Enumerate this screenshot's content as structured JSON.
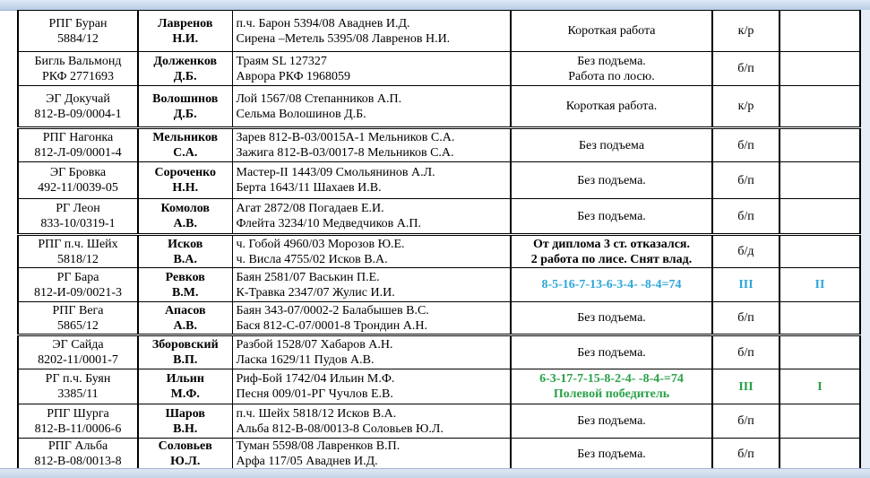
{
  "rows": [
    {
      "dog": [
        "РПГ Буран",
        "5884/12"
      ],
      "owner": [
        "Лавренов",
        "Н.И."
      ],
      "parents": [
        "п.ч. Барон 5394/08 Аваднев И.Д.",
        "Сирена –Метель 5395/08 Лавренов Н.И."
      ],
      "result": [
        "Короткая работа"
      ],
      "diploma": "к/р",
      "place": "",
      "style": "normal"
    },
    {
      "dog": [
        "Бигль Вальмонд",
        "РКФ 2771693"
      ],
      "owner": [
        "Долженков",
        "Д.Б."
      ],
      "parents": [
        "Траям SL 127327",
        "Аврора  РКФ 1968059"
      ],
      "result": [
        "Без подъема.",
        "Работа по лосю."
      ],
      "diploma": "б/п",
      "place": "",
      "style": "normal"
    },
    {
      "dog": [
        "ЭГ Докучай",
        "812-В-09/0004-1"
      ],
      "owner": [
        "Волошинов",
        "Д.Б."
      ],
      "parents": [
        "Лой 1567/08 Степанников А.П.",
        "Сельма  Волошинов Д.Б."
      ],
      "result": [
        "Короткая работа."
      ],
      "diploma": "к/р",
      "place": "",
      "style": "normal"
    },
    {
      "dog": [
        "РПГ Нагонка",
        "812-Л-09/0001-4"
      ],
      "owner": [
        "Мельников",
        "С.А."
      ],
      "parents": [
        "Зарев 812-В-03/0015А-1 Мельников С.А.",
        "Зажига 812-В-03/0017-8 Мельников С.А."
      ],
      "result": [
        "Без подъема"
      ],
      "diploma": "б/п",
      "place": "",
      "style": "normal",
      "sep": true
    },
    {
      "dog": [
        "ЭГ Бровка",
        "492-11/0039-05"
      ],
      "owner": [
        "Сороченко",
        "Н.Н."
      ],
      "parents": [
        "Мастер-II 1443/09 Смольянинов А.Л.",
        "Берта 1643/11 Шахаев И.В."
      ],
      "result": [
        "Без подъема."
      ],
      "diploma": "б/п",
      "place": "",
      "style": "normal"
    },
    {
      "dog": [
        "РГ Леон",
        "833-10/0319-1"
      ],
      "owner": [
        "Комолов",
        "А.В."
      ],
      "parents": [
        "Агат 2872/08 Погадаев Е.И.",
        "Флейта 3234/10 Медведчиков А.П."
      ],
      "result": [
        "Без подъема."
      ],
      "diploma": "б/п",
      "place": "",
      "style": "normal"
    },
    {
      "dog": [
        "РПГ п.ч. Шейх",
        "5818/12"
      ],
      "owner": [
        "Исков",
        "В.А."
      ],
      "parents": [
        "ч. Гобой  4960/03 Морозов Ю.Е.",
        "ч. Висла 4755/02 Исков В.А."
      ],
      "result": [
        "От диплома 3 ст. отказался.",
        "2 работа по лисе. Снят влад."
      ],
      "diploma": "б/д",
      "place": "",
      "style": "bold",
      "sep": true
    },
    {
      "dog": [
        "РГ Бара",
        "812-И-09/0021-3"
      ],
      "owner": [
        "Ревков",
        "В.М."
      ],
      "parents": [
        "Баян  2581/07 Васькин П.Е.",
        "К-Травка 2347/07 Жулис И.И."
      ],
      "result": [
        "8-5-16-7-13-6-3-4- -8-4=74"
      ],
      "diploma": "III",
      "place": "II",
      "style": "blue"
    },
    {
      "dog": [
        "РПГ Вега",
        "5865/12"
      ],
      "owner": [
        "Апасов",
        "А.В."
      ],
      "parents": [
        "Баян  343-07/0002-2 Балабышев В.С.",
        "Бася 812-С-07/0001-8 Трондин А.Н."
      ],
      "result": [
        "Без подъема."
      ],
      "diploma": "б/п",
      "place": "",
      "style": "normal"
    },
    {
      "dog": [
        "ЭГ Сайда",
        "8202-11/0001-7"
      ],
      "owner": [
        "Зборовский",
        "В.П."
      ],
      "parents": [
        "Разбой  1528/07 Хабаров А.Н.",
        "Ласка 1629/11 Пудов А.В."
      ],
      "result": [
        "Без подъема."
      ],
      "diploma": "б/п",
      "place": "",
      "style": "normal",
      "sep": true
    },
    {
      "dog": [
        "РГ п.ч. Буян",
        "3385/11"
      ],
      "owner": [
        "Ильин",
        "М.Ф."
      ],
      "parents": [
        "Риф-Бой  1742/04 Ильин М.Ф.",
        "Песня  009/01-РГ Чучлов Е.В."
      ],
      "result": [
        "6-3-17-7-15-8-2-4- -8-4-=74",
        "Полевой победитель"
      ],
      "diploma": "III",
      "place": "I",
      "style": "green"
    },
    {
      "dog": [
        "РПГ Шурга",
        "812-В-11/0006-6"
      ],
      "owner": [
        "Шаров",
        "В.Н."
      ],
      "parents": [
        "п.ч. Шейх 5818/12 Исков В.А.",
        "Альба 812-В-08/0013-8 Соловьев Ю.Л."
      ],
      "result": [
        "Без подъема."
      ],
      "diploma": "б/п",
      "place": "",
      "style": "normal"
    },
    {
      "dog": [
        "РПГ Альба",
        "812-В-08/0013-8"
      ],
      "owner": [
        "Соловьев",
        "Ю.Л."
      ],
      "parents": [
        "Туман 5598/08 Лавренков В.П.",
        "Арфа 117/05 Аваднев И.Д."
      ],
      "result": [
        "Без подъема."
      ],
      "diploma": "б/п",
      "place": "",
      "style": "normal"
    }
  ],
  "colors": {
    "blue": "#2ea6d8",
    "green": "#2aa048"
  }
}
